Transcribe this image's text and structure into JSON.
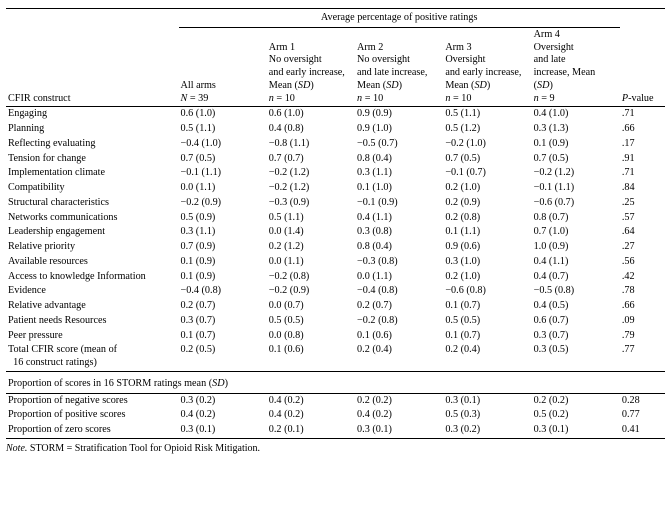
{
  "title": "Average percentage of positive ratings",
  "row_header": "CFIR construct",
  "p_header": {
    "i": "P",
    "rest": "-value"
  },
  "cols": [
    {
      "l1": "",
      "l2": "",
      "l3": "",
      "l4": "All arms",
      "l5i": "N",
      "l5": " = 39"
    },
    {
      "l1": "Arm 1",
      "l2": "No oversight",
      "l3": "and early increase,",
      "l4": "Mean (",
      "l4i": "SD",
      "l4e": ")",
      "l5i": "n",
      "l5": " = 10"
    },
    {
      "l1": "Arm 2",
      "l2": "No oversight",
      "l3": "and late increase,",
      "l4": "Mean (",
      "l4i": "SD",
      "l4e": ")",
      "l5i": "n",
      "l5": " = 10"
    },
    {
      "l1": "Arm 3",
      "l2": "Oversight",
      "l3": "and early increase,",
      "l4": "Mean (",
      "l4i": "SD",
      "l4e": ")",
      "l5i": "n",
      "l5": " = 10"
    },
    {
      "l1": "Arm 4",
      "l2": "Oversight",
      "l3": "and late",
      "l4": "increase, Mean",
      "l4b": "(",
      "l4bi": "SD",
      "l4be": ")",
      "l5i": "n",
      "l5": " = 9"
    }
  ],
  "rows": [
    {
      "label": "Engaging",
      "v": [
        "0.6 (1.0)",
        "0.6 (1.0)",
        "0.9 (0.9)",
        "0.5 (1.1)",
        "0.4 (1.0)"
      ],
      "p": ".71"
    },
    {
      "label": "Planning",
      "v": [
        "0.5 (1.1)",
        "0.4 (0.8)",
        "0.9 (1.0)",
        "0.5 (1.2)",
        "0.3 (1.3)"
      ],
      "p": ".66"
    },
    {
      "label": "Reflecting evaluating",
      "v": [
        "−0.4 (1.0)",
        "−0.8 (1.1)",
        "−0.5 (0.7)",
        "−0.2 (1.0)",
        "0.1 (0.9)"
      ],
      "p": ".17"
    },
    {
      "label": "Tension for change",
      "v": [
        "0.7 (0.5)",
        "0.7 (0.7)",
        "0.8 (0.4)",
        "0.7 (0.5)",
        "0.7 (0.5)"
      ],
      "p": ".91"
    },
    {
      "label": "Implementation climate",
      "v": [
        "−0.1 (1.1)",
        "−0.2 (1.2)",
        "0.3 (1.1)",
        "−0.1 (0.7)",
        "−0.2 (1.2)"
      ],
      "p": ".71"
    },
    {
      "label": "Compatibility",
      "v": [
        "0.0 (1.1)",
        "−0.2 (1.2)",
        "0.1 (1.0)",
        "0.2 (1.0)",
        "−0.1 (1.1)"
      ],
      "p": ".84"
    },
    {
      "label": "Structural characteristics",
      "v": [
        "−0.2 (0.9)",
        "−0.3 (0.9)",
        "−0.1 (0.9)",
        "0.2 (0.9)",
        "−0.6 (0.7)"
      ],
      "p": ".25"
    },
    {
      "label": "Networks communications",
      "v": [
        "0.5 (0.9)",
        "0.5 (1.1)",
        "0.4 (1.1)",
        "0.2 (0.8)",
        "0.8 (0.7)"
      ],
      "p": ".57"
    },
    {
      "label": "Leadership engagement",
      "v": [
        "0.3 (1.1)",
        "0.0 (1.4)",
        "0.3 (0.8)",
        "0.1 (1.1)",
        "0.7 (1.0)"
      ],
      "p": ".64"
    },
    {
      "label": "Relative priority",
      "v": [
        "0.7 (0.9)",
        "0.2 (1.2)",
        "0.8 (0.4)",
        "0.9 (0.6)",
        "1.0 (0.9)"
      ],
      "p": ".27"
    },
    {
      "label": "Available resources",
      "v": [
        "0.1 (0.9)",
        "0.0 (1.1)",
        "−0.3 (0.8)",
        "0.3 (1.0)",
        "0.4 (1.1)"
      ],
      "p": ".56"
    },
    {
      "label": "Access to knowledge Information",
      "v": [
        "0.1 (0.9)",
        "−0.2 (0.8)",
        "0.0 (1.1)",
        "0.2 (1.0)",
        "0.4 (0.7)"
      ],
      "p": ".42"
    },
    {
      "label": "Evidence",
      "v": [
        "−0.4 (0.8)",
        "−0.2 (0.9)",
        "−0.4 (0.8)",
        "−0.6 (0.8)",
        "−0.5 (0.8)"
      ],
      "p": ".78"
    },
    {
      "label": "Relative advantage",
      "v": [
        "0.2 (0.7)",
        "0.0 (0.7)",
        "0.2 (0.7)",
        "0.1 (0.7)",
        "0.4 (0.5)"
      ],
      "p": ".66"
    },
    {
      "label": "Patient needs Resources",
      "v": [
        "0.3 (0.7)",
        "0.5 (0.5)",
        "−0.2 (0.8)",
        "0.5 (0.5)",
        "0.6 (0.7)"
      ],
      "p": ".09"
    },
    {
      "label": "Peer pressure",
      "v": [
        "0.1 (0.7)",
        "0.0 (0.8)",
        "0.1 (0.6)",
        "0.1 (0.7)",
        "0.3 (0.7)"
      ],
      "p": ".79"
    },
    {
      "label": "Total CFIR score (mean of 16 construct ratings)",
      "wrap": true,
      "v": [
        "0.2 (0.5)",
        "0.1 (0.6)",
        "0.2 (0.4)",
        "0.2 (0.4)",
        "0.3 (0.5)"
      ],
      "p": ".77"
    }
  ],
  "section2": "Proportion of scores in 16 STORM ratings mean (",
  "section2i": "SD",
  "section2e": ")",
  "rows2": [
    {
      "label": "Proportion of negative scores",
      "v": [
        "0.3 (0.2)",
        "0.4 (0.2)",
        "0.2 (0.2)",
        "0.3 (0.1)",
        "0.2 (0.2)"
      ],
      "p": "0.28"
    },
    {
      "label": "Proportion of positive scores",
      "v": [
        "0.4 (0.2)",
        "0.4 (0.2)",
        "0.4 (0.2)",
        "0.5 (0.3)",
        "0.5 (0.2)"
      ],
      "p": "0.77"
    },
    {
      "label": "Proportion of zero scores",
      "v": [
        "0.3 (0.1)",
        "0.2 (0.1)",
        "0.3 (0.1)",
        "0.3 (0.2)",
        "0.3 (0.1)"
      ],
      "p": "0.41"
    }
  ],
  "note_pre": "Note.",
  "note": " STORM = Stratification Tool for Opioid Risk Mitigation."
}
